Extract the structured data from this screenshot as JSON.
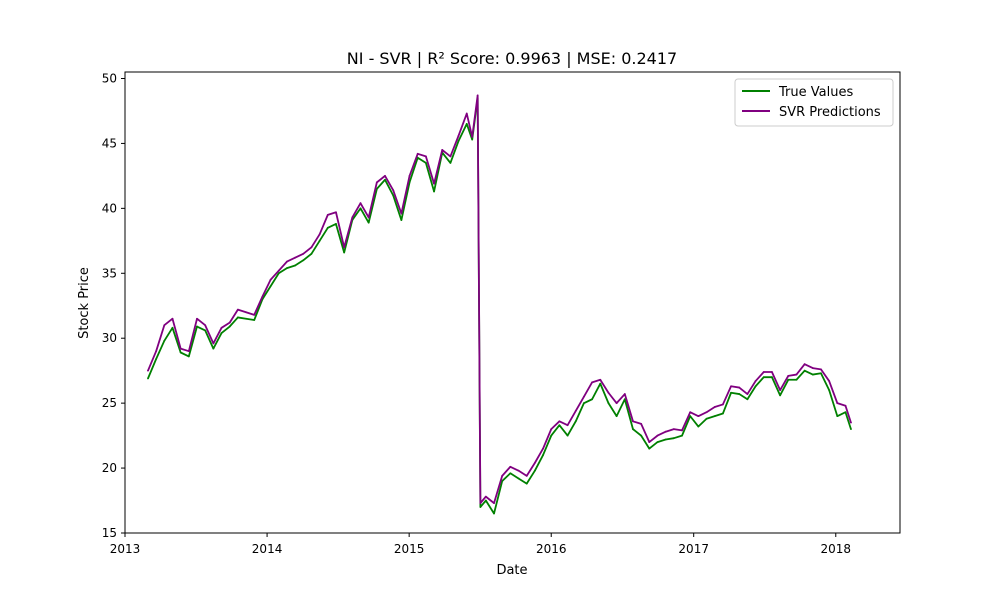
{
  "chart_data": {
    "type": "line",
    "title": "NI - SVR | R² Score: 0.9963 | MSE: 0.2417",
    "xlabel": "Date",
    "ylabel": "Stock Price",
    "xlim": [
      "2013-01-01",
      "2018-06-15"
    ],
    "ylim": [
      15,
      50.5
    ],
    "x_ticks": [
      "2013",
      "2014",
      "2015",
      "2016",
      "2017",
      "2018"
    ],
    "y_ticks": [
      15,
      20,
      25,
      30,
      35,
      40,
      45,
      50
    ],
    "grid": false,
    "legend_position": "top-right",
    "x": [
      "2013-03-01",
      "2013-03-22",
      "2013-04-12",
      "2013-05-03",
      "2013-05-24",
      "2013-06-14",
      "2013-07-05",
      "2013-07-26",
      "2013-08-16",
      "2013-09-06",
      "2013-09-27",
      "2013-10-18",
      "2013-11-08",
      "2013-11-29",
      "2013-12-20",
      "2014-01-10",
      "2014-01-31",
      "2014-02-21",
      "2014-03-14",
      "2014-04-04",
      "2014-04-25",
      "2014-05-16",
      "2014-06-06",
      "2014-06-27",
      "2014-07-18",
      "2014-08-08",
      "2014-08-29",
      "2014-09-19",
      "2014-10-10",
      "2014-10-31",
      "2014-11-21",
      "2014-12-12",
      "2015-01-02",
      "2015-01-23",
      "2015-02-13",
      "2015-03-06",
      "2015-03-27",
      "2015-04-17",
      "2015-05-08",
      "2015-05-29",
      "2015-06-12",
      "2015-06-26",
      "2015-07-03",
      "2015-07-17",
      "2015-08-07",
      "2015-08-28",
      "2015-09-18",
      "2015-10-09",
      "2015-10-30",
      "2015-11-20",
      "2015-12-11",
      "2016-01-01",
      "2016-01-22",
      "2016-02-12",
      "2016-03-04",
      "2016-03-25",
      "2016-04-15",
      "2016-05-06",
      "2016-05-27",
      "2016-06-17",
      "2016-07-08",
      "2016-07-29",
      "2016-08-19",
      "2016-09-09",
      "2016-09-30",
      "2016-10-21",
      "2016-11-11",
      "2016-12-02",
      "2016-12-23",
      "2017-01-13",
      "2017-02-03",
      "2017-02-24",
      "2017-03-17",
      "2017-04-07",
      "2017-04-28",
      "2017-05-19",
      "2017-06-09",
      "2017-06-30",
      "2017-07-21",
      "2017-08-11",
      "2017-09-01",
      "2017-09-22",
      "2017-10-13",
      "2017-11-03",
      "2017-11-24",
      "2017-12-15",
      "2018-01-05",
      "2018-01-26",
      "2018-02-09"
    ],
    "series": [
      {
        "name": "True Values",
        "color": "#008000",
        "values": [
          26.9,
          28.4,
          29.8,
          30.8,
          28.9,
          28.6,
          30.9,
          30.6,
          29.2,
          30.4,
          30.9,
          31.6,
          31.5,
          31.4,
          33.0,
          34.0,
          35.0,
          35.4,
          35.6,
          36.0,
          36.5,
          37.5,
          38.5,
          38.8,
          36.6,
          39.1,
          40.0,
          38.9,
          41.5,
          42.2,
          41.0,
          39.1,
          42.0,
          43.9,
          43.5,
          41.3,
          44.3,
          43.5,
          45.2,
          46.5,
          45.3,
          48.5,
          17.0,
          17.5,
          16.5,
          19.0,
          19.6,
          19.2,
          18.8,
          19.8,
          21.0,
          22.5,
          23.3,
          22.5,
          23.6,
          25.0,
          25.3,
          26.5,
          25.0,
          24.0,
          25.3,
          23.0,
          22.5,
          21.5,
          22.0,
          22.2,
          22.3,
          22.5,
          24.0,
          23.2,
          23.8,
          24.0,
          24.2,
          25.8,
          25.7,
          25.3,
          26.3,
          27.0,
          27.0,
          25.6,
          26.8,
          26.8,
          27.5,
          27.2,
          27.3,
          26.0,
          24.0,
          24.3,
          23.0
        ]
      },
      {
        "name": "SVR Predictions",
        "color": "#800080",
        "values": [
          27.5,
          29.0,
          31.0,
          31.5,
          29.2,
          29.0,
          31.5,
          31.0,
          29.6,
          30.8,
          31.2,
          32.2,
          32.0,
          31.8,
          33.2,
          34.5,
          35.2,
          35.9,
          36.2,
          36.5,
          37.0,
          38.0,
          39.5,
          39.7,
          37.0,
          39.3,
          40.4,
          39.3,
          42.0,
          42.5,
          41.4,
          39.6,
          42.5,
          44.2,
          44.0,
          41.9,
          44.5,
          44.0,
          45.6,
          47.3,
          45.5,
          48.7,
          17.3,
          17.8,
          17.3,
          19.4,
          20.1,
          19.8,
          19.4,
          20.4,
          21.5,
          23.0,
          23.6,
          23.3,
          24.4,
          25.5,
          26.6,
          26.8,
          25.8,
          25.0,
          25.7,
          23.6,
          23.4,
          22.0,
          22.5,
          22.8,
          23.0,
          22.9,
          24.3,
          24.0,
          24.3,
          24.7,
          24.9,
          26.3,
          26.2,
          25.7,
          26.7,
          27.4,
          27.4,
          26.0,
          27.1,
          27.2,
          28.0,
          27.7,
          27.6,
          26.7,
          25.0,
          24.8,
          23.5
        ]
      }
    ]
  }
}
